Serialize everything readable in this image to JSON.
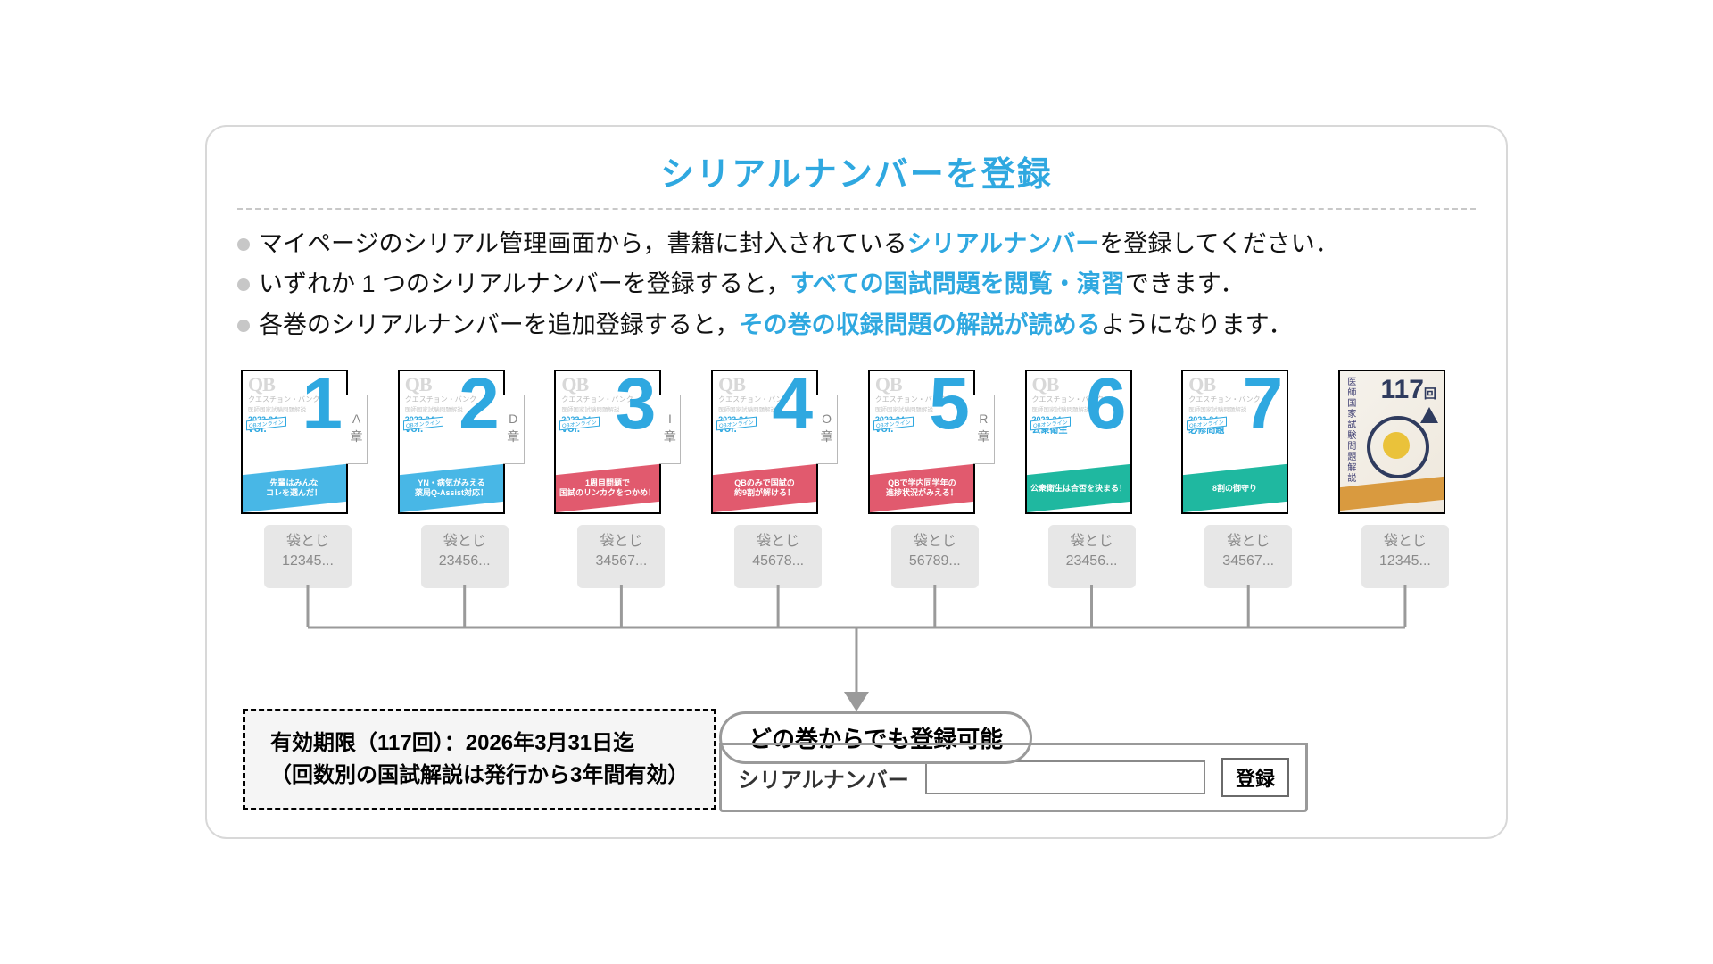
{
  "title": "シリアルナンバーを登録",
  "colors": {
    "accent": "#2fa8e0",
    "border": "#d8d8d8",
    "muted": "#8a8a8a",
    "chip_bg": "#e7e7e7",
    "dash": "#c8c8c8"
  },
  "bullets": [
    {
      "pre": "マイページのシリアル管理画面から，書籍に封入されている",
      "hl": "シリアルナンバー",
      "post": "を登録してください．"
    },
    {
      "pre": "いずれか 1 つのシリアルナンバーを登録すると，",
      "hl": "すべての国試問題を閲覧・演習",
      "post": "できます．"
    },
    {
      "pre": "各巻のシリアルナンバーを追加登録すると，",
      "hl": "その巻の収録問題の解説が読める",
      "post": "ようになります．"
    }
  ],
  "books": [
    {
      "num": "1",
      "chapter": "A",
      "band_color": "#48b7e6",
      "band_text": "先輩はみんな\nコレを選んだ！",
      "subtitle": "vol.",
      "serial": "12345..."
    },
    {
      "num": "2",
      "chapter": "D",
      "band_color": "#48b7e6",
      "band_text": "YN・病気がみえる\n薬局Q-Assist対応！",
      "subtitle": "vol.",
      "serial": "23456..."
    },
    {
      "num": "3",
      "chapter": "I",
      "band_color": "#e15a6e",
      "band_text": "1周目問題で\n国試のリンカクをつかめ！",
      "subtitle": "vol.",
      "serial": "34567..."
    },
    {
      "num": "4",
      "chapter": "O",
      "band_color": "#e15a6e",
      "band_text": "QBのみで国試の\n約9割が解ける！",
      "subtitle": "vol.",
      "serial": "45678..."
    },
    {
      "num": "5",
      "chapter": "R",
      "band_color": "#e15a6e",
      "band_text": "QBで学内同学年の\n進捗状況がみえる！",
      "subtitle": "vol.",
      "serial": "56789..."
    },
    {
      "num": "6",
      "chapter": "",
      "band_color": "#1fb8a0",
      "band_text": "公衆衛生は合否を決まる！",
      "subtitle": "公衆衛生",
      "serial": "23456..."
    },
    {
      "num": "7",
      "chapter": "",
      "band_color": "#1fb8a0",
      "band_text": "8割の御守り",
      "subtitle": "必修問題",
      "serial": "34567..."
    },
    {
      "num": "117",
      "chapter": "",
      "special": true,
      "subtitle": "医師国家試験問題解説",
      "serial": "12345..."
    }
  ],
  "book_meta": {
    "qb": "QB",
    "brand": "クエスチョン・バンク",
    "subline": "医師国家試験問題解説",
    "year": "2023-24",
    "online": "QBオンライン"
  },
  "serial_label": "袋とじ",
  "callout": "どの巻からでも登録可能",
  "form": {
    "label": "シリアルナンバー",
    "placeholder": "",
    "button": "登録"
  },
  "validity": {
    "line1": "有効期限（117回）：2026年3月31日迄",
    "line2": "（回数別の国試解説は発行から3年間有効）"
  },
  "connector": {
    "stroke": "#9a9a9a",
    "stroke_width": 3,
    "arrow_fill": "#9a9a9a"
  }
}
